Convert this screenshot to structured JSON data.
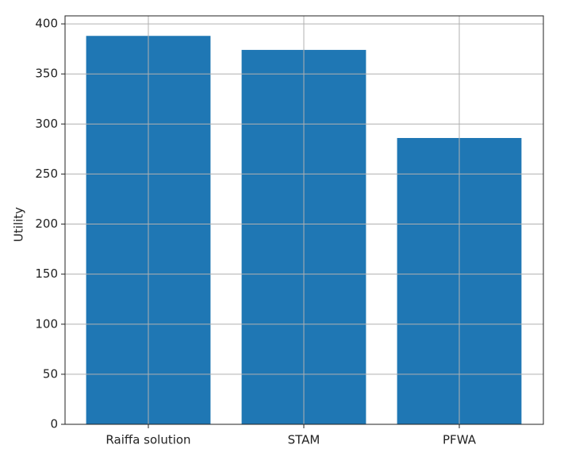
{
  "chart_data": {
    "type": "bar",
    "ylabel": "Utility",
    "categories": [
      "Raiffa solution",
      "STAM",
      "PFWA"
    ],
    "values": [
      388,
      374,
      286
    ],
    "color": "#1f77b4",
    "ylim": [
      0,
      408
    ],
    "yticks": [
      0,
      50,
      100,
      150,
      200,
      250,
      300,
      350,
      400
    ],
    "grid": true
  }
}
